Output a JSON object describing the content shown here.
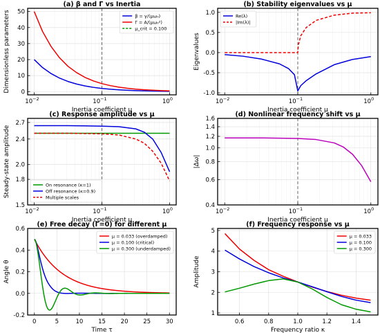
{
  "chart_data": [
    {
      "id": "a",
      "type": "line",
      "title": "(a) β and Γ vs Inertia",
      "xlabel": "Inertia coefficient μ",
      "ylabel": "Dimensionless parameters",
      "xscale": "log",
      "xlim": [
        0.008,
        1.25
      ],
      "ylim": [
        -2,
        52
      ],
      "xticks": [
        {
          "v": 0.01,
          "base": "10",
          "exp": "−2"
        },
        {
          "v": 0.1,
          "base": "10",
          "exp": "−1"
        },
        {
          "v": 1,
          "base": "10",
          "exp": "0"
        }
      ],
      "yticks": [
        0,
        10,
        20,
        30,
        40,
        50
      ],
      "legend": "top-right",
      "vline": {
        "x": 0.1,
        "color": "#666666"
      },
      "series": [
        {
          "name": "β = γ/(μω₀)",
          "color": "#0000dd",
          "style": "solid",
          "x": [
            0.01,
            0.0133,
            0.0178,
            0.0237,
            0.0316,
            0.0422,
            0.0562,
            0.075,
            0.1,
            0.1334,
            0.1778,
            0.2371,
            0.3162,
            0.4217,
            0.5623,
            0.7499,
            1.0
          ],
          "y": [
            20.0,
            15.0,
            11.25,
            8.43,
            6.32,
            4.74,
            3.56,
            2.67,
            2.0,
            1.5,
            1.12,
            0.84,
            0.63,
            0.47,
            0.36,
            0.27,
            0.2
          ]
        },
        {
          "name": "Γ = A/(μω₀²)",
          "color": "#ee0000",
          "style": "solid",
          "x": [
            0.01,
            0.0133,
            0.0178,
            0.0237,
            0.0316,
            0.0422,
            0.0562,
            0.075,
            0.1,
            0.1334,
            0.1778,
            0.2371,
            0.3162,
            0.4217,
            0.5623,
            0.7499,
            1.0
          ],
          "y": [
            50.0,
            37.5,
            28.1,
            21.1,
            15.8,
            11.9,
            8.9,
            6.67,
            5.0,
            3.75,
            2.81,
            2.11,
            1.58,
            1.19,
            0.89,
            0.67,
            0.5
          ]
        },
        {
          "name": "μ_crit = 0.100",
          "color": "#009900",
          "style": "dashed",
          "legend_only": true
        }
      ]
    },
    {
      "id": "b",
      "type": "line",
      "title": "(b) Stability eigenvalues vs μ",
      "xlabel": "Inertia coefficient μ",
      "ylabel": "Eigenvalues",
      "xscale": "log",
      "xlim": [
        0.008,
        1.25
      ],
      "ylim": [
        -1.05,
        1.1
      ],
      "xticks": [
        {
          "v": 0.01,
          "base": "10",
          "exp": "−2"
        },
        {
          "v": 0.1,
          "base": "10",
          "exp": "−1"
        },
        {
          "v": 1,
          "base": "10",
          "exp": "0"
        }
      ],
      "yticks": [
        -1.0,
        -0.5,
        0.0,
        0.5,
        1.0
      ],
      "legend": "top-left",
      "vline": {
        "x": 0.1,
        "color": "#666666"
      },
      "series": [
        {
          "name": "Re(λ)",
          "color": "#0000dd",
          "style": "solid",
          "x": [
            0.01,
            0.0178,
            0.0316,
            0.0562,
            0.075,
            0.09,
            0.1,
            0.11,
            0.13,
            0.178,
            0.316,
            0.562,
            1.0
          ],
          "y": [
            -0.05,
            -0.09,
            -0.16,
            -0.28,
            -0.4,
            -0.55,
            -0.95,
            -0.82,
            -0.7,
            -0.53,
            -0.3,
            -0.17,
            -0.1
          ]
        },
        {
          "name": "|Im(λ)|",
          "color": "#ee0000",
          "style": "dashed",
          "x": [
            0.01,
            0.05,
            0.099,
            0.1,
            0.102,
            0.11,
            0.13,
            0.178,
            0.316,
            0.562,
            1.0
          ],
          "y": [
            0.0,
            0.0,
            0.0,
            0.0,
            0.2,
            0.42,
            0.62,
            0.8,
            0.93,
            0.98,
            0.99
          ]
        }
      ]
    },
    {
      "id": "c",
      "type": "line",
      "title": "(c) Response amplitude vs μ",
      "xlabel": "Inertia coefficient μ",
      "ylabel": "Steady-state amplitude",
      "xscale": "log",
      "yscale": "log",
      "xlim": [
        0.008,
        1.25
      ],
      "ylim": [
        1.5,
        2.78
      ],
      "xticks": [
        {
          "v": 0.01,
          "base": "10",
          "exp": "−2"
        },
        {
          "v": 0.1,
          "base": "10",
          "exp": "−1"
        },
        {
          "v": 1,
          "base": "10",
          "exp": "0"
        }
      ],
      "yticks": [
        1.5,
        1.8,
        2.0,
        2.4,
        2.7
      ],
      "ytick_labels": [
        "1.5",
        "1.8",
        "2.0",
        "2.4",
        "2.7"
      ],
      "legend": "bottom-left",
      "vline": {
        "x": 0.1,
        "color": "#666666"
      },
      "series": [
        {
          "name": "On resonance (κ=1)",
          "color": "#009900",
          "style": "solid",
          "x": [
            0.01,
            1.0
          ],
          "y": [
            2.5,
            2.5
          ]
        },
        {
          "name": "Off resonance (κ=0.9)",
          "color": "#0000dd",
          "style": "solid",
          "x": [
            0.01,
            0.0316,
            0.1,
            0.178,
            0.316,
            0.422,
            0.562,
            0.75,
            1.0
          ],
          "y": [
            2.64,
            2.64,
            2.63,
            2.62,
            2.58,
            2.52,
            2.4,
            2.18,
            1.9
          ]
        },
        {
          "name": "Multiple scales",
          "color": "#ee0000",
          "style": "dashed",
          "x": [
            0.01,
            0.0316,
            0.1,
            0.178,
            0.316,
            0.422,
            0.562,
            0.75,
            1.0
          ],
          "y": [
            2.5,
            2.5,
            2.49,
            2.47,
            2.4,
            2.33,
            2.2,
            2.02,
            1.78
          ]
        }
      ]
    },
    {
      "id": "d",
      "type": "line",
      "title": "(d) Nonlinear frequency shift vs μ",
      "xlabel": "Inertia coefficient μ",
      "ylabel": "|Δω|",
      "xscale": "log",
      "yscale": "log",
      "xlim": [
        0.008,
        1.25
      ],
      "ylim": [
        0.4,
        1.6
      ],
      "xticks": [
        {
          "v": 0.01,
          "base": "10",
          "exp": "−2"
        },
        {
          "v": 0.1,
          "base": "10",
          "exp": "−1"
        },
        {
          "v": 1,
          "base": "10",
          "exp": "0"
        }
      ],
      "yticks": [
        0.4,
        0.6,
        0.8,
        1.0,
        1.2,
        1.4,
        1.6
      ],
      "ytick_labels": [
        "0.4",
        "0.6",
        "0.8",
        "1.0",
        "1.2",
        "1.4",
        "1.6"
      ],
      "vline": {
        "x": 0.1,
        "color": "#666666"
      },
      "series": [
        {
          "name": "|Δω|",
          "color": "#bb00bb",
          "style": "solid",
          "x": [
            0.01,
            0.0316,
            0.1,
            0.178,
            0.316,
            0.422,
            0.562,
            0.75,
            1.0
          ],
          "y": [
            1.17,
            1.17,
            1.16,
            1.14,
            1.08,
            1.01,
            0.9,
            0.75,
            0.58
          ]
        }
      ]
    },
    {
      "id": "e",
      "type": "line",
      "title": "(e) Free decay (Γ=0) for different μ",
      "xlabel": "Time τ",
      "ylabel": "Angle θ",
      "xlim": [
        -1.5,
        31.5
      ],
      "ylim": [
        -0.2,
        0.6
      ],
      "xticks": [
        {
          "v": 0,
          "label": "0"
        },
        {
          "v": 5,
          "label": "5"
        },
        {
          "v": 10,
          "label": "10"
        },
        {
          "v": 15,
          "label": "15"
        },
        {
          "v": 20,
          "label": "20"
        },
        {
          "v": 25,
          "label": "25"
        },
        {
          "v": 30,
          "label": "30"
        }
      ],
      "yticks": [
        -0.2,
        0.0,
        0.2,
        0.4,
        0.6
      ],
      "legend": "top-right",
      "series": [
        {
          "name": "μ = 0.033 (overdamped)",
          "color": "#ee0000",
          "style": "solid",
          "kind": "decay_over"
        },
        {
          "name": "μ = 0.100 (critical)",
          "color": "#0000dd",
          "style": "solid",
          "kind": "decay_crit"
        },
        {
          "name": "μ = 0.300 (underdamped)",
          "color": "#009900",
          "style": "solid",
          "kind": "decay_under"
        }
      ]
    },
    {
      "id": "f",
      "type": "line",
      "title": "(f) Frequency response vs μ",
      "xlabel": "Frequency ratio κ",
      "ylabel": "Amplitude",
      "xlim": [
        0.45,
        1.55
      ],
      "ylim": [
        0.9,
        5.1
      ],
      "xticks": [
        {
          "v": 0.6,
          "label": "0.6"
        },
        {
          "v": 0.8,
          "label": "0.8"
        },
        {
          "v": 1.0,
          "label": "1.0"
        },
        {
          "v": 1.2,
          "label": "1.2"
        },
        {
          "v": 1.4,
          "label": "1.4"
        }
      ],
      "yticks": [
        1,
        2,
        3,
        4,
        5
      ],
      "legend": "top-right",
      "series": [
        {
          "name": "μ = 0.033",
          "color": "#ee0000",
          "style": "solid",
          "x": [
            0.5,
            0.6,
            0.7,
            0.8,
            0.9,
            1.0,
            1.1,
            1.2,
            1.3,
            1.4,
            1.5
          ],
          "y": [
            4.85,
            4.1,
            3.55,
            3.1,
            2.78,
            2.5,
            2.25,
            2.04,
            1.86,
            1.72,
            1.62
          ]
        },
        {
          "name": "μ = 0.100",
          "color": "#0000dd",
          "style": "solid",
          "x": [
            0.5,
            0.6,
            0.7,
            0.8,
            0.9,
            1.0,
            1.1,
            1.2,
            1.3,
            1.4,
            1.5
          ],
          "y": [
            4.05,
            3.62,
            3.25,
            2.95,
            2.7,
            2.5,
            2.27,
            2.03,
            1.8,
            1.62,
            1.5
          ]
        },
        {
          "name": "μ = 0.300",
          "color": "#009900",
          "style": "solid",
          "x": [
            0.5,
            0.6,
            0.7,
            0.8,
            0.9,
            1.0,
            1.1,
            1.2,
            1.3,
            1.4,
            1.5
          ],
          "y": [
            2.02,
            2.2,
            2.4,
            2.57,
            2.65,
            2.5,
            2.16,
            1.75,
            1.4,
            1.18,
            1.05
          ]
        }
      ]
    }
  ]
}
